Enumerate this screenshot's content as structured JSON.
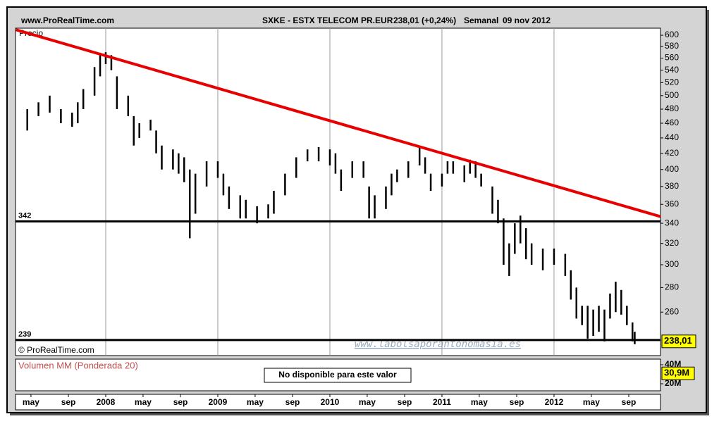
{
  "header": {
    "site": "www.ProRealTime.com",
    "symbol": "SXKE - ESTX TELECOM PR.EUR",
    "quote": "238,01 (+0,24%)",
    "period": "Semanal",
    "date": "09 nov 2012"
  },
  "chart_data": {
    "type": "range-bar",
    "panel_label": "Precio",
    "copyright": "© ProRealTime.com",
    "watermark": "www.labolsaporantonomasia.es",
    "log_scale": true,
    "color": "#000000",
    "grid": true,
    "xlim": [
      2007.195,
      2012.95
    ],
    "ylim": [
      228,
      613
    ],
    "xticks": [
      {
        "value": 2007.333,
        "label": "may"
      },
      {
        "value": 2007.667,
        "label": "sep"
      },
      2008,
      {
        "value": 2008.333,
        "label": "may"
      },
      {
        "value": 2008.667,
        "label": "sep"
      },
      2009,
      {
        "value": 2009.333,
        "label": "may"
      },
      {
        "value": 2009.667,
        "label": "sep"
      },
      2010,
      {
        "value": 2010.333,
        "label": "may"
      },
      {
        "value": 2010.667,
        "label": "sep"
      },
      2011,
      {
        "value": 2011.333,
        "label": "may"
      },
      {
        "value": 2011.667,
        "label": "sep"
      },
      2012,
      {
        "value": 2012.333,
        "label": "may"
      },
      {
        "value": 2012.667,
        "label": "sep"
      }
    ],
    "yticks": [
      260,
      280,
      300,
      320,
      340,
      360,
      380,
      400,
      420,
      440,
      460,
      480,
      500,
      520,
      540,
      560,
      580,
      600
    ],
    "x": [
      2007.3,
      2007.4,
      2007.5,
      2007.6,
      2007.7,
      2007.75,
      2007.8,
      2007.9,
      2007.95,
      2008.0,
      2008.05,
      2008.1,
      2008.2,
      2008.25,
      2008.3,
      2008.4,
      2008.45,
      2008.5,
      2008.6,
      2008.65,
      2008.7,
      2008.75,
      2008.8,
      2008.9,
      2009.0,
      2009.05,
      2009.1,
      2009.2,
      2009.25,
      2009.35,
      2009.45,
      2009.5,
      2009.6,
      2009.7,
      2009.8,
      2009.9,
      2010.0,
      2010.05,
      2010.1,
      2010.2,
      2010.3,
      2010.35,
      2010.4,
      2010.5,
      2010.55,
      2010.6,
      2010.7,
      2010.8,
      2010.85,
      2010.9,
      2011.0,
      2011.05,
      2011.1,
      2011.2,
      2011.25,
      2011.3,
      2011.35,
      2011.45,
      2011.5,
      2011.55,
      2011.6,
      2011.65,
      2011.7,
      2011.75,
      2011.8,
      2011.9,
      2012.0,
      2012.1,
      2012.15,
      2012.2,
      2012.25,
      2012.3,
      2012.35,
      2012.4,
      2012.45,
      2012.5,
      2012.55,
      2012.6,
      2012.65,
      2012.7,
      2012.72
    ],
    "high": [
      480,
      490,
      500,
      480,
      475,
      490,
      510,
      545,
      565,
      570,
      565,
      530,
      500,
      470,
      460,
      465,
      450,
      430,
      425,
      420,
      415,
      400,
      395,
      410,
      410,
      395,
      380,
      370,
      365,
      358,
      360,
      375,
      395,
      415,
      425,
      428,
      425,
      420,
      400,
      410,
      410,
      380,
      370,
      380,
      395,
      400,
      410,
      428,
      415,
      395,
      395,
      410,
      410,
      405,
      412,
      410,
      395,
      380,
      365,
      345,
      320,
      340,
      348,
      335,
      320,
      315,
      315,
      310,
      295,
      280,
      265,
      265,
      262,
      265,
      262,
      275,
      285,
      278,
      265,
      252,
      245
    ],
    "low": [
      450,
      470,
      475,
      460,
      455,
      460,
      480,
      500,
      530,
      550,
      540,
      480,
      470,
      430,
      440,
      450,
      420,
      400,
      400,
      395,
      385,
      325,
      350,
      380,
      390,
      370,
      355,
      345,
      345,
      340,
      345,
      350,
      370,
      390,
      410,
      410,
      405,
      395,
      375,
      390,
      390,
      345,
      345,
      355,
      370,
      385,
      390,
      405,
      395,
      375,
      380,
      395,
      395,
      385,
      395,
      390,
      380,
      350,
      340,
      300,
      290,
      310,
      320,
      305,
      300,
      295,
      300,
      290,
      270,
      255,
      250,
      240,
      242,
      245,
      238,
      255,
      260,
      258,
      250,
      238,
      236
    ],
    "levels": [
      342,
      239
    ],
    "trend_line": {
      "x": [
        2007.2,
        2012.95
      ],
      "y": [
        610,
        347
      ],
      "color": "#e80000"
    },
    "last_value": 238.01,
    "last_label": "238,01"
  },
  "volume": {
    "title": "Volumen MM (Ponderada 20)",
    "message": "No disponible para este valor",
    "ylim": [
      12.6,
      45.9
    ],
    "yticks": [
      {
        "value": 20,
        "label": "20M"
      },
      {
        "value": 40,
        "label": "40M"
      }
    ],
    "last_value": 30.9,
    "last_label": "30,9M"
  }
}
